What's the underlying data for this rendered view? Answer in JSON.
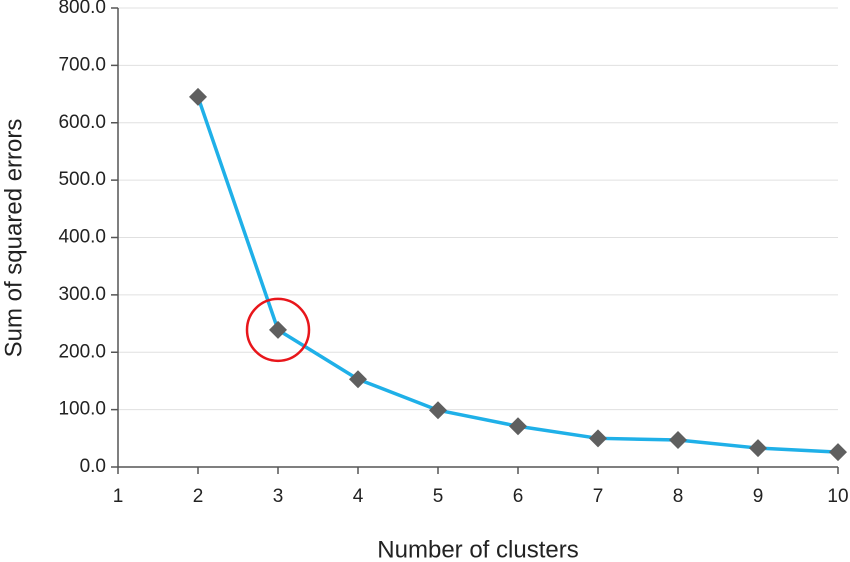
{
  "chart_data": {
    "type": "line",
    "x_label": "Number of clusters",
    "y_label": "Sum of squared errors",
    "x": [
      2,
      3,
      4,
      5,
      6,
      7,
      8,
      9,
      10
    ],
    "series": [
      {
        "color": "#1fb0e8",
        "marker_color": "#5f5f5f",
        "values": [
          645,
          239,
          153,
          99,
          71,
          50,
          47,
          33,
          26
        ]
      }
    ],
    "xlim": [
      1,
      10
    ],
    "xticks": [
      1,
      2,
      3,
      4,
      5,
      6,
      7,
      8,
      9,
      10
    ],
    "ylim": [
      0,
      800
    ],
    "yticks": [
      {
        "value": 0,
        "label": "0.0"
      },
      {
        "value": 100,
        "label": "100.0"
      },
      {
        "value": 200,
        "label": "200.0"
      },
      {
        "value": 300,
        "label": "300.0"
      },
      {
        "value": 400,
        "label": "400.0"
      },
      {
        "value": 500,
        "label": "500.0"
      },
      {
        "value": 600,
        "label": "600.0"
      },
      {
        "value": 700,
        "label": "700.0"
      },
      {
        "value": 800,
        "label": "800.0"
      }
    ],
    "grid": true,
    "highlight_x": 3,
    "highlight_color": "#e8161b"
  }
}
